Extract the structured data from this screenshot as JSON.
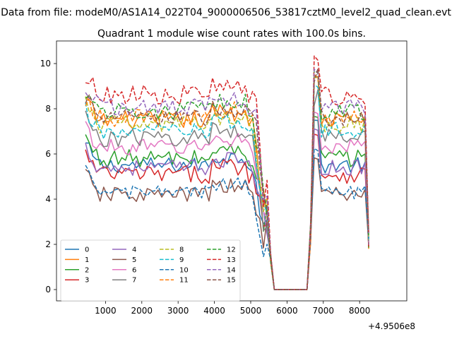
{
  "suptitle": "Data from file: modeM0/AS1A14_022T04_9000006506_53817cztM0_level2_quad_clean.evt",
  "chart_data": {
    "type": "line",
    "title": "Quadrant 1 module wise count rates with 100.0s bins.",
    "xlabel": "",
    "ylabel": "",
    "x_offset_label": "+4.9506e8",
    "xlim": [
      -350,
      9300
    ],
    "ylim": [
      -0.5,
      11
    ],
    "x_ticks": [
      1000,
      2000,
      3000,
      4000,
      5000,
      6000,
      7000,
      8000
    ],
    "x_tick_labels": [
      "1000",
      "2000",
      "3000",
      "4000",
      "5000",
      "6000",
      "7000",
      "8000"
    ],
    "y_ticks": [
      0,
      2,
      4,
      6,
      8,
      10
    ],
    "y_tick_labels": [
      "0",
      "2",
      "4",
      "6",
      "8",
      "10"
    ],
    "grid": false,
    "legend_position": "lower-left",
    "legend_columns": 4,
    "dashed_from_series": 8,
    "series": [
      {
        "name": "0",
        "color": "#1f77b4",
        "level": 5.5,
        "spread": 0.35
      },
      {
        "name": "1",
        "color": "#ff7f0e",
        "level": 7.5,
        "spread": 0.4
      },
      {
        "name": "2",
        "color": "#2ca02c",
        "level": 5.8,
        "spread": 0.4
      },
      {
        "name": "3",
        "color": "#d62728",
        "level": 5.1,
        "spread": 0.4
      },
      {
        "name": "4",
        "color": "#9467bd",
        "level": 5.4,
        "spread": 0.35
      },
      {
        "name": "5",
        "color": "#8c564b",
        "level": 4.2,
        "spread": 0.35
      },
      {
        "name": "6",
        "color": "#e377c2",
        "level": 6.3,
        "spread": 0.35
      },
      {
        "name": "7",
        "color": "#7f7f7f",
        "level": 6.7,
        "spread": 0.4
      },
      {
        "name": "8",
        "color": "#bcbd22",
        "level": 7.3,
        "spread": 0.4
      },
      {
        "name": "9",
        "color": "#17becf",
        "level": 7.0,
        "spread": 0.4
      },
      {
        "name": "10",
        "color": "#1f77b4",
        "level": 4.3,
        "spread": 0.3
      },
      {
        "name": "11",
        "color": "#ff7f0e",
        "level": 7.6,
        "spread": 0.4
      },
      {
        "name": "12",
        "color": "#2ca02c",
        "level": 7.9,
        "spread": 0.4
      },
      {
        "name": "13",
        "color": "#d62728",
        "level": 8.6,
        "spread": 0.45
      },
      {
        "name": "14",
        "color": "#9467bd",
        "level": 8.1,
        "spread": 0.4
      },
      {
        "name": "15",
        "color": "#8c564b",
        "level": 7.6,
        "spread": 0.4
      }
    ]
  }
}
